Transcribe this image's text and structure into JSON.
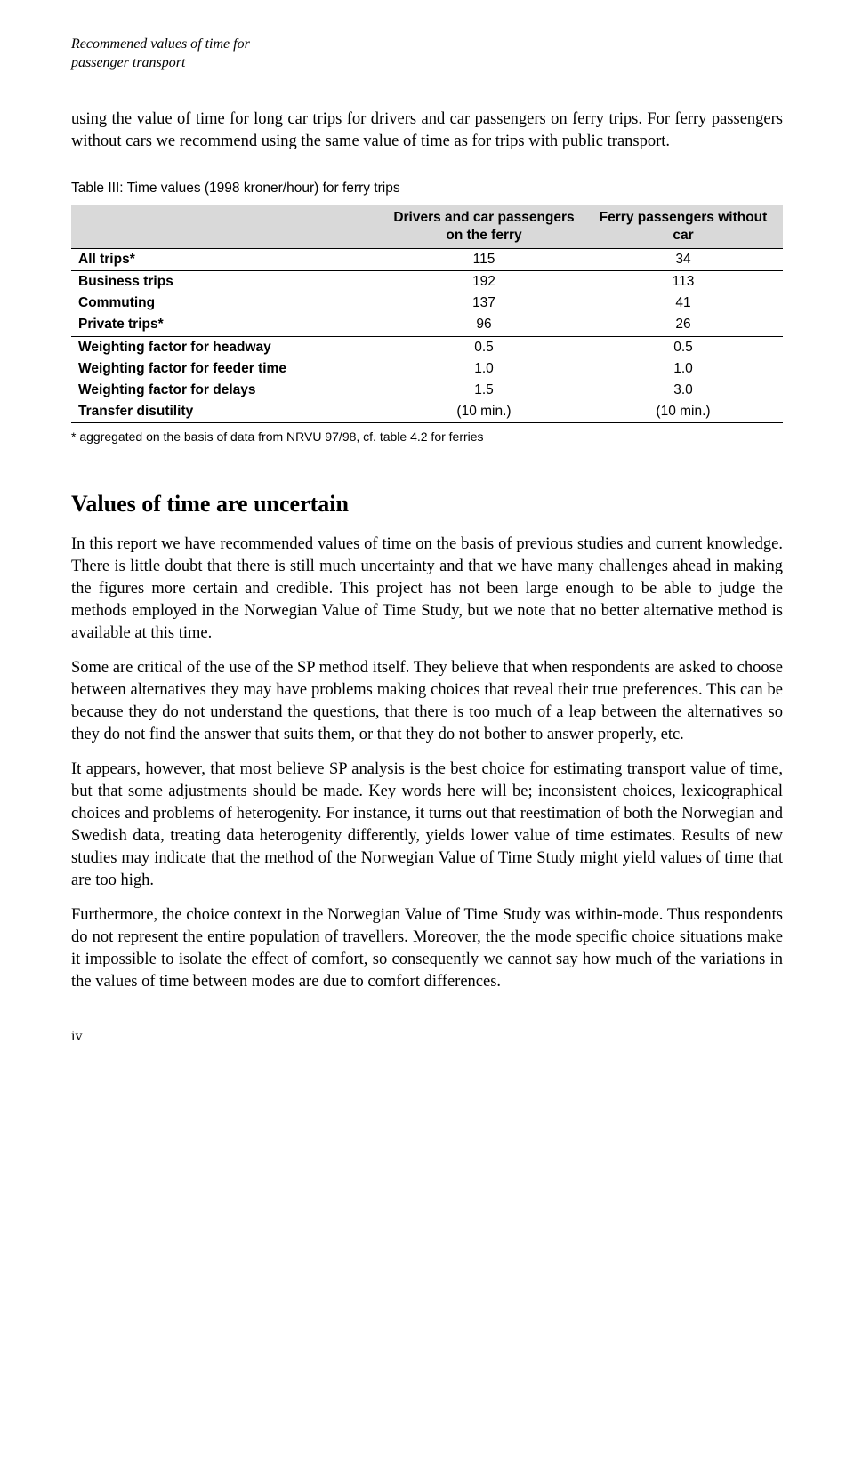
{
  "header": {
    "title_line1": "Recommened values of time for",
    "title_line2": "passenger transport"
  },
  "intro": "using the value of time for long car trips for drivers and car passengers on ferry trips. For ferry passengers without cars we recommend using the same value of time as for trips with public transport.",
  "table": {
    "caption": "Table III: Time values (1998 kroner/hour) for ferry trips",
    "columns": [
      "",
      "Drivers and car passengers on the ferry",
      "Ferry passengers without car"
    ],
    "header_bg": "#d9d9d9",
    "rows": [
      {
        "label": "All trips*",
        "c1": "115",
        "c2": "34",
        "sep": true
      },
      {
        "label": "Business trips",
        "c1": "192",
        "c2": "113",
        "sep": true
      },
      {
        "label": "Commuting",
        "c1": "137",
        "c2": "41",
        "sep": false
      },
      {
        "label": "Private trips*",
        "c1": "96",
        "c2": "26",
        "sep": false
      },
      {
        "label": "Weighting factor for headway",
        "c1": "0.5",
        "c2": "0.5",
        "sep": true
      },
      {
        "label": "Weighting factor for feeder time",
        "c1": "1.0",
        "c2": "1.0",
        "sep": false
      },
      {
        "label": "Weighting factor for delays",
        "c1": "1.5",
        "c2": "3.0",
        "sep": false
      },
      {
        "label": "Transfer disutility",
        "c1": "(10 min.)",
        "c2": "(10 min.)",
        "sep": false,
        "last": true
      }
    ],
    "footnote": "* aggregated on the basis of data from NRVU 97/98, cf. table 4.2 for ferries"
  },
  "section_heading": "Values of time are uncertain",
  "paragraphs": [
    "In this report we have recommended values of time on the basis of previous studies and current knowledge. There is little doubt that there is still much uncertainty and that we have many challenges ahead in making the figures more certain and credible. This project has not been large enough to be able to judge the methods employed in the Norwegian Value of Time Study, but we note that no better alternative method is available at this time.",
    "Some are critical of the use of the SP method itself. They believe that when respondents are asked to choose between alternatives they may have problems making choices that reveal their true preferences. This can be because they do not understand the questions, that there is too much of a leap between the alternatives so they do not find the answer that suits them, or that they do not bother to answer properly, etc.",
    "It appears, however, that most believe SP analysis is the best choice for estimating transport value of time, but that some adjustments should be made. Key words here will be; inconsistent choices, lexicographical choices and problems of heterogenity. For instance, it turns out that reestimation of both the Norwegian and Swedish data, treating data heterogenity differently, yields lower value of time estimates. Results of new studies may indicate that the method of the Norwegian Value of Time Study might yield values of time that are too high.",
    "Furthermore, the choice context in the Norwegian Value of Time Study was within-mode. Thus respondents do not represent the entire population of travellers. Moreover, the the mode specific choice situations make it impossible to isolate the effect of comfort, so consequently we cannot say how much of the variations in the values of time between modes are due to comfort differences."
  ],
  "page_number": "iv"
}
